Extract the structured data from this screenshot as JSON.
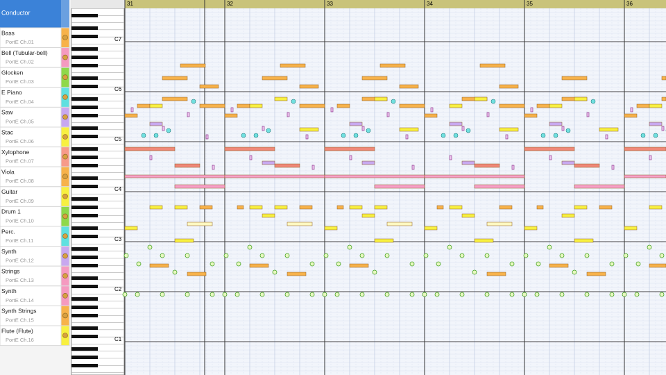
{
  "conductor": "Conductor",
  "tracks": [
    {
      "name": "Bass",
      "port": "PortE  Ch.01"
    },
    {
      "name": "Bell (Tubular-bell)",
      "port": "PortE  Ch.02"
    },
    {
      "name": "Glocken",
      "port": "PortE  Ch.03"
    },
    {
      "name": "E Piano",
      "port": "PortE  Ch.04"
    },
    {
      "name": "Saw",
      "port": "PortE  Ch.05"
    },
    {
      "name": "Stac",
      "port": "PortE  Ch.06"
    },
    {
      "name": "Xylophone",
      "port": "PortE  Ch.07"
    },
    {
      "name": "Viola",
      "port": "PortE  Ch.08"
    },
    {
      "name": "Guitar",
      "port": "PortE  Ch.09"
    },
    {
      "name": "Drum 1",
      "port": "PortE  Ch.10"
    },
    {
      "name": "Perc.",
      "port": "PortE  Ch.11"
    },
    {
      "name": "Synth",
      "port": "PortE  Ch.12"
    },
    {
      "name": "Strings",
      "port": "PortE  Ch.13"
    },
    {
      "name": "Synth",
      "port": "PortE  Ch.14"
    },
    {
      "name": "Synth Strings",
      "port": "PortE  Ch.15"
    },
    {
      "name": "Flute (Flute)",
      "port": "PortE  Ch.16"
    }
  ],
  "measures": [
    "31",
    "32",
    "33",
    "34",
    "35",
    "36"
  ],
  "octaves": [
    "C7",
    "C6",
    "C5",
    "C4",
    "C3",
    "C2",
    "C1"
  ]
}
